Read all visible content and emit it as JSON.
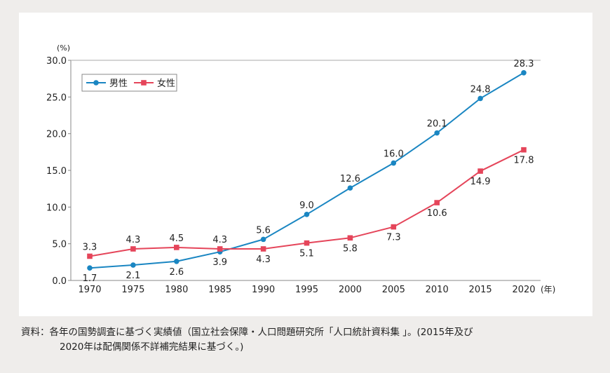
{
  "chart_data": {
    "type": "line",
    "x": [
      1970,
      1975,
      1980,
      1985,
      1990,
      1995,
      2000,
      2005,
      2010,
      2015,
      2020
    ],
    "series": [
      {
        "name": "男性",
        "color": "#1a86c2",
        "marker": "circle",
        "values": [
          1.7,
          2.1,
          2.6,
          3.9,
          5.6,
          9.0,
          12.6,
          16.0,
          20.1,
          24.8,
          28.3
        ]
      },
      {
        "name": "女性",
        "color": "#e5455a",
        "marker": "square",
        "values": [
          3.3,
          4.3,
          4.5,
          4.3,
          4.3,
          5.1,
          5.8,
          7.3,
          10.6,
          14.9,
          17.8
        ]
      }
    ],
    "yticks": [
      "0.0",
      "5.0",
      "10.0",
      "15.0",
      "20.0",
      "25.0",
      "30.0"
    ],
    "ylim": [
      0,
      30
    ],
    "yunit": "(%)",
    "xunit": "(年)",
    "legend": "top-left",
    "grid": false
  },
  "note": {
    "line1": "資料：各年の国勢調査に基づく実績値（国立社会保障・人口問題研究所「人口統計資料集 」。(2015年及び",
    "line2": "2020年は配偶関係不詳補完結果に基づく。)"
  }
}
